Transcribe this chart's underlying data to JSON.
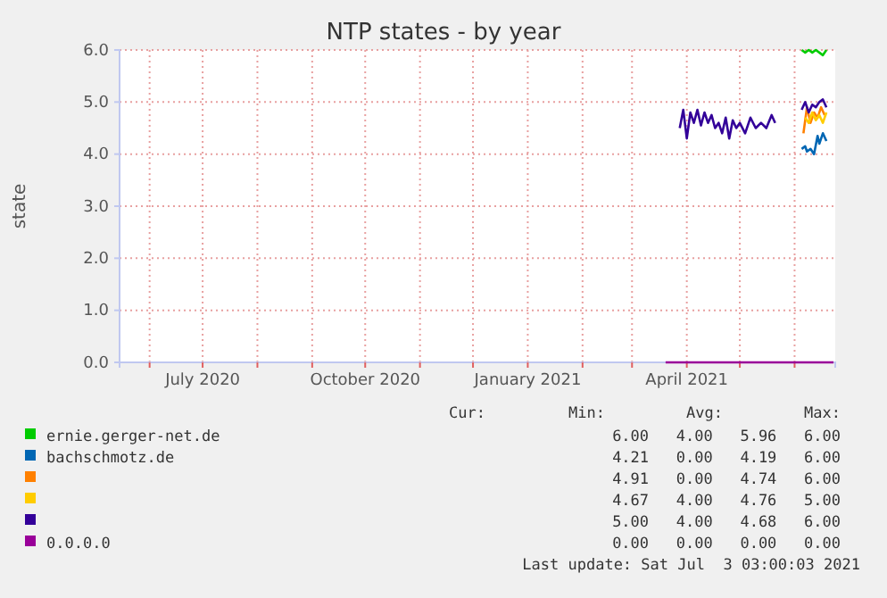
{
  "chart_data": {
    "type": "line",
    "title": "NTP states - by year",
    "ylabel": "state",
    "xlim": [
      "2020-05-15",
      "2021-06-24"
    ],
    "xticks": [
      {
        "value": "2020-06-01",
        "label": null
      },
      {
        "value": "2020-07-01",
        "label": "July 2020"
      },
      {
        "value": "2020-08-01",
        "label": null
      },
      {
        "value": "2020-09-01",
        "label": null
      },
      {
        "value": "2020-10-01",
        "label": "October 2020"
      },
      {
        "value": "2020-11-01",
        "label": null
      },
      {
        "value": "2020-12-01",
        "label": null
      },
      {
        "value": "2021-01-01",
        "label": "January 2021"
      },
      {
        "value": "2021-02-01",
        "label": null
      },
      {
        "value": "2021-03-01",
        "label": null
      },
      {
        "value": "2021-04-01",
        "label": "April 2021"
      },
      {
        "value": "2021-05-01",
        "label": null
      },
      {
        "value": "2021-06-01",
        "label": null
      }
    ],
    "ylim": [
      0,
      6
    ],
    "yticks": [
      {
        "value": 0,
        "label": "0.0"
      },
      {
        "value": 1,
        "label": "1.0"
      },
      {
        "value": 2,
        "label": "2.0"
      },
      {
        "value": 3,
        "label": "3.0"
      },
      {
        "value": 4,
        "label": "4.0"
      },
      {
        "value": 5,
        "label": "5.0"
      },
      {
        "value": 6,
        "label": "6.0"
      }
    ],
    "grid": true,
    "legend": "bottom",
    "series": [
      {
        "name": "ernie.gerger-net.de",
        "color": "#00cc00",
        "x": [
          "2021-06-05",
          "2021-06-07",
          "2021-06-09",
          "2021-06-11",
          "2021-06-13",
          "2021-06-15",
          "2021-06-17",
          "2021-06-19"
        ],
        "values": [
          6.0,
          5.95,
          6.0,
          5.95,
          6.0,
          5.95,
          5.9,
          6.0
        ]
      },
      {
        "name": "bachschmotz.de",
        "color": "#0066b3",
        "x": [
          "2021-06-05",
          "2021-06-07",
          "2021-06-08",
          "2021-06-10",
          "2021-06-12",
          "2021-06-14",
          "2021-06-15",
          "2021-06-17",
          "2021-06-19"
        ],
        "values": [
          4.1,
          4.15,
          4.05,
          4.1,
          4.0,
          4.35,
          4.2,
          4.4,
          4.25
        ]
      },
      {
        "color": "#ff8000",
        "x": [
          "2021-06-06",
          "2021-06-08",
          "2021-06-10",
          "2021-06-12",
          "2021-06-14",
          "2021-06-16",
          "2021-06-18"
        ],
        "values": [
          4.4,
          4.9,
          4.6,
          4.8,
          4.7,
          4.9,
          4.75
        ]
      },
      {
        "color": "#ffcc00",
        "x": [
          "2021-06-07",
          "2021-06-09",
          "2021-06-11",
          "2021-06-13",
          "2021-06-15",
          "2021-06-17",
          "2021-06-19"
        ],
        "values": [
          4.7,
          4.6,
          4.8,
          4.65,
          4.75,
          4.6,
          4.8
        ]
      },
      {
        "color": "#330099",
        "x": [
          "2021-03-28",
          "2021-03-30",
          "2021-04-01",
          "2021-04-03",
          "2021-04-05",
          "2021-04-07",
          "2021-04-09",
          "2021-04-11",
          "2021-04-13",
          "2021-04-15",
          "2021-04-17",
          "2021-04-19",
          "2021-04-21",
          "2021-04-23",
          "2021-04-25",
          "2021-04-27",
          "2021-04-29",
          "2021-05-01",
          "2021-05-04",
          "2021-05-07",
          "2021-05-10",
          "2021-05-13",
          "2021-05-16",
          "2021-05-19",
          "2021-05-21",
          "2021-05-28",
          "2021-06-05",
          "2021-06-07",
          "2021-06-09",
          "2021-06-11",
          "2021-06-13",
          "2021-06-15",
          "2021-06-17",
          "2021-06-19"
        ],
        "values": [
          4.5,
          4.85,
          4.3,
          4.8,
          4.6,
          4.85,
          4.55,
          4.8,
          4.6,
          4.75,
          4.5,
          4.6,
          4.4,
          4.7,
          4.3,
          4.65,
          4.5,
          4.6,
          4.4,
          4.7,
          4.5,
          4.6,
          4.5,
          4.75,
          4.6,
          null,
          4.85,
          5.0,
          4.8,
          4.95,
          4.9,
          5.0,
          5.05,
          4.9
        ]
      },
      {
        "name": "0.0.0.0",
        "color": "#990099",
        "x": [
          "2021-03-20",
          "2021-06-23"
        ],
        "values": [
          0,
          0
        ]
      }
    ],
    "annotations": [
      "Cur:",
      "Min:",
      "Avg:",
      "Max:",
      "6.00   4.00   5.96   6.00",
      "4.21   0.00   4.19   6.00",
      "4.91   0.00   4.74   6.00",
      "4.67   4.00   4.76   5.00",
      "5.00   4.00   4.68   6.00",
      "0.00   0.00   0.00   0.00",
      "Last update: Sat Jul  3 03:00:03 2021"
    ]
  }
}
